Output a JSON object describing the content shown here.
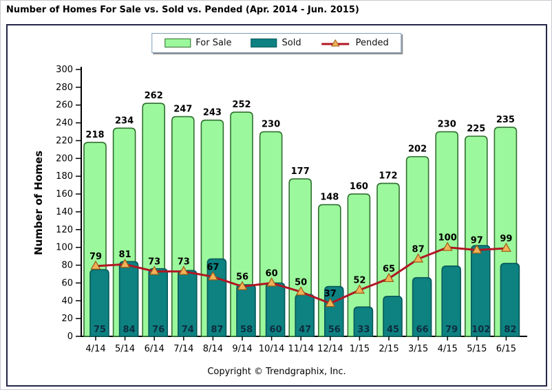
{
  "page": {
    "title": "Number of Homes For Sale vs. Sold vs. Pended (Apr. 2014 - Jun. 2015)",
    "copyright": "Copyright © Trendgraphix, Inc."
  },
  "legend": [
    {
      "label": "For Sale",
      "type": "box",
      "fill": "#9CF89C",
      "border": "#2F6F2F"
    },
    {
      "label": "Sold",
      "type": "box",
      "fill": "#0E8181",
      "border": "#075959"
    },
    {
      "label": "Pended",
      "type": "line",
      "line_color": "#B11623",
      "marker_fill": "#F0B159",
      "marker_border": "#9C5A14"
    }
  ],
  "chart_data": {
    "type": "bar+line",
    "title": "Number of Homes For Sale vs. Sold vs. Pended (Apr. 2014 - Jun. 2015)",
    "xlabel": "",
    "ylabel": "Number of Homes",
    "ylim": [
      0,
      300
    ],
    "ytick_step": 20,
    "grid": false,
    "legend_position": "top-center",
    "categories": [
      "4/14",
      "5/14",
      "6/14",
      "7/14",
      "8/14",
      "9/14",
      "10/14",
      "11/14",
      "12/14",
      "1/15",
      "2/15",
      "3/15",
      "4/15",
      "5/15",
      "6/15"
    ],
    "series": [
      {
        "name": "For Sale",
        "type": "bar",
        "color": "#9CF89C",
        "border": "#2F6F2F",
        "values": [
          218,
          234,
          262,
          247,
          243,
          252,
          230,
          177,
          148,
          160,
          172,
          202,
          230,
          225,
          235
        ]
      },
      {
        "name": "Sold",
        "type": "bar",
        "color": "#0E8181",
        "border": "#075959",
        "values": [
          75,
          84,
          76,
          74,
          87,
          58,
          60,
          47,
          56,
          33,
          45,
          66,
          79,
          102,
          82
        ]
      },
      {
        "name": "Pended",
        "type": "line",
        "color": "#B11623",
        "marker_fill": "#F0B159",
        "marker_border": "#9C5A14",
        "values": [
          79,
          81,
          73,
          73,
          67,
          56,
          60,
          50,
          37,
          52,
          65,
          87,
          100,
          97,
          99
        ]
      }
    ]
  }
}
